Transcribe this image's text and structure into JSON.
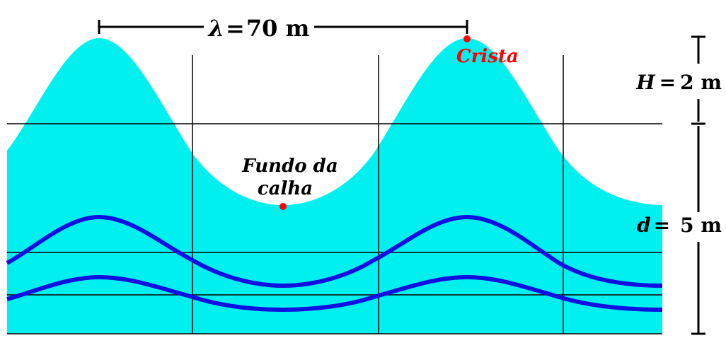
{
  "wavelength_label": {
    "symbol": "λ",
    "equals": "=",
    "value": "70 m"
  },
  "crest_label": "Crista",
  "trough_label": {
    "line1": "Fundo da",
    "line2": "calha"
  },
  "height_label": {
    "symbol": "H",
    "equals": "=",
    "value": "2 m"
  },
  "depth_label": {
    "symbol": "d",
    "equals": "=",
    "value": "5 m"
  },
  "colors": {
    "water": "#00F0F0",
    "orbit_lines": "#1010E0",
    "grid": "#000000",
    "marker": "#FF0000",
    "crest_text": "#FF0000",
    "text": "#000000"
  }
}
